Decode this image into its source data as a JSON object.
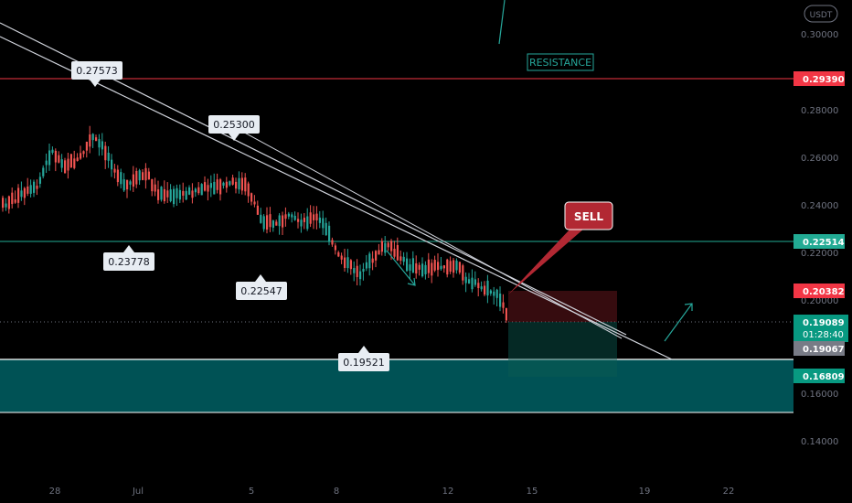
{
  "chart_data": {
    "type": "candlestick",
    "currency_badge": "USDT",
    "ylim": [
      0.12,
      0.31
    ],
    "y_ticks": [
      "0.30000",
      "0.28000",
      "0.26000",
      "0.24000",
      "0.22000",
      "0.20000",
      "0.18000",
      "0.16000",
      "0.14000"
    ],
    "x_ticks": [
      "28",
      "Jul",
      "5",
      "8",
      "12",
      "15",
      "19",
      "22"
    ],
    "price_levels": [
      {
        "name": "resistance-line",
        "value": "0.29390",
        "color": "#f23645"
      },
      {
        "name": "support-line",
        "value": "0.22514",
        "color": "#22ab94"
      },
      {
        "name": "stop-level",
        "value": "0.20382",
        "color": "#f23645"
      },
      {
        "name": "current-price",
        "value": "0.19089",
        "color": "#089981"
      },
      {
        "name": "entry-level",
        "value": "0.19067",
        "color": "#787b86"
      },
      {
        "name": "target-level",
        "value": "0.16809",
        "color": "#089981"
      }
    ],
    "countdown": "01:28:40",
    "annotations": {
      "resistance": "RESISTANCE",
      "sell": "SELL",
      "price_labels": [
        "0.27573",
        "0.25300",
        "0.23778",
        "0.22547",
        "0.19521"
      ]
    },
    "colors": {
      "up": "#26a69a",
      "down": "#ef5350",
      "trendline": "#d1d4dc",
      "support_zone": "#006064",
      "sell_callout": "#b22833",
      "arrow": "#26a69a"
    }
  }
}
